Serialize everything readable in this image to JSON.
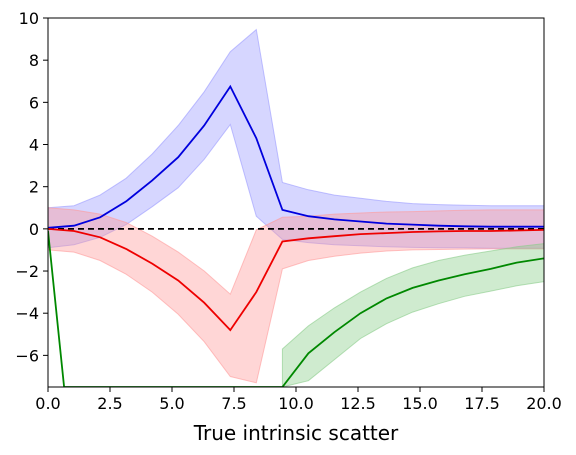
{
  "chart_data": {
    "type": "line",
    "title": "",
    "xlabel": "True intrinsic scatter",
    "ylabel": "",
    "xlim": [
      0,
      20
    ],
    "ylim": [
      -7.5,
      10
    ],
    "xticks": [
      0.0,
      2.5,
      5.0,
      7.5,
      10.0,
      12.5,
      15.0,
      17.5,
      20.0
    ],
    "xtick_labels": [
      "0.0",
      "2.5",
      "5.0",
      "7.5",
      "10.0",
      "12.5",
      "15.0",
      "17.5",
      "20.0"
    ],
    "yticks": [
      -6,
      -4,
      -2,
      0,
      2,
      4,
      6,
      8,
      10
    ],
    "ytick_labels": [
      "−6",
      "−4",
      "−2",
      "0",
      "2",
      "4",
      "6",
      "8",
      "10"
    ],
    "grid": false,
    "reference_line": {
      "y": 0,
      "style": "dashed",
      "color": "#000000"
    },
    "series": [
      {
        "color": "#0000dd",
        "band_color": "#9999ff",
        "x": [
          0,
          1.05,
          2.1,
          3.15,
          4.2,
          5.25,
          6.3,
          7.35,
          8.4,
          9.45,
          10.5,
          11.55,
          12.6,
          13.65,
          14.7,
          15.75,
          16.8,
          17.85,
          18.9,
          20
        ],
        "y": [
          0.05,
          0.15,
          0.55,
          1.3,
          2.3,
          3.4,
          4.9,
          6.75,
          4.3,
          0.9,
          0.6,
          0.45,
          0.35,
          0.25,
          0.2,
          0.15,
          0.12,
          0.1,
          0.1,
          0.1
        ],
        "lower": [
          -0.9,
          -0.75,
          -0.4,
          0.2,
          1.05,
          1.95,
          3.3,
          4.95,
          0.6,
          -0.5,
          -0.65,
          -0.75,
          -0.8,
          -0.85,
          -0.88,
          -0.9,
          -0.9,
          -0.92,
          -0.92,
          -0.92
        ],
        "upper": [
          1.0,
          1.1,
          1.6,
          2.4,
          3.55,
          4.9,
          6.5,
          8.4,
          9.45,
          2.2,
          1.85,
          1.6,
          1.45,
          1.3,
          1.2,
          1.15,
          1.12,
          1.1,
          1.1,
          1.1
        ]
      },
      {
        "color": "#ee0000",
        "band_color": "#ff9999",
        "x": [
          0,
          1.05,
          2.1,
          3.15,
          4.2,
          5.25,
          6.3,
          7.35,
          8.4,
          9.45,
          10.5,
          11.55,
          12.6,
          13.65,
          14.7,
          15.75,
          16.8,
          17.85,
          18.9,
          20
        ],
        "y": [
          0.0,
          -0.1,
          -0.4,
          -0.95,
          -1.65,
          -2.45,
          -3.5,
          -4.8,
          -3.0,
          -0.6,
          -0.45,
          -0.35,
          -0.25,
          -0.2,
          -0.15,
          -0.12,
          -0.1,
          -0.1,
          -0.08,
          -0.05
        ],
        "lower": [
          -1.0,
          -1.1,
          -1.5,
          -2.15,
          -3.0,
          -4.05,
          -5.35,
          -7.0,
          -7.3,
          -1.9,
          -1.5,
          -1.3,
          -1.15,
          -1.05,
          -1.0,
          -0.98,
          -0.96,
          -0.95,
          -0.95,
          -0.95
        ],
        "upper": [
          1.0,
          0.9,
          0.7,
          0.3,
          -0.35,
          -1.1,
          -2.0,
          -3.1,
          -0.05,
          0.55,
          0.6,
          0.7,
          0.75,
          0.8,
          0.82,
          0.85,
          0.88,
          0.9,
          0.9,
          0.9
        ]
      },
      {
        "color": "#008800",
        "band_color": "#88cc88",
        "x": [
          0,
          0.65,
          9.45,
          10.5,
          11.55,
          12.6,
          13.65,
          14.7,
          15.75,
          16.8,
          17.85,
          18.9,
          20
        ],
        "y": [
          -0.1,
          -7.5,
          -7.5,
          -5.9,
          -4.9,
          -4.0,
          -3.3,
          -2.8,
          -2.45,
          -2.15,
          -1.9,
          -1.6,
          -1.4
        ],
        "lower": [
          null,
          null,
          -7.5,
          -7.2,
          -6.2,
          -5.2,
          -4.5,
          -3.95,
          -3.55,
          -3.2,
          -2.95,
          -2.7,
          -2.5
        ],
        "upper": [
          null,
          null,
          -5.7,
          -4.6,
          -3.75,
          -3.0,
          -2.35,
          -1.85,
          -1.5,
          -1.25,
          -1.05,
          -0.85,
          -0.7
        ]
      }
    ]
  }
}
